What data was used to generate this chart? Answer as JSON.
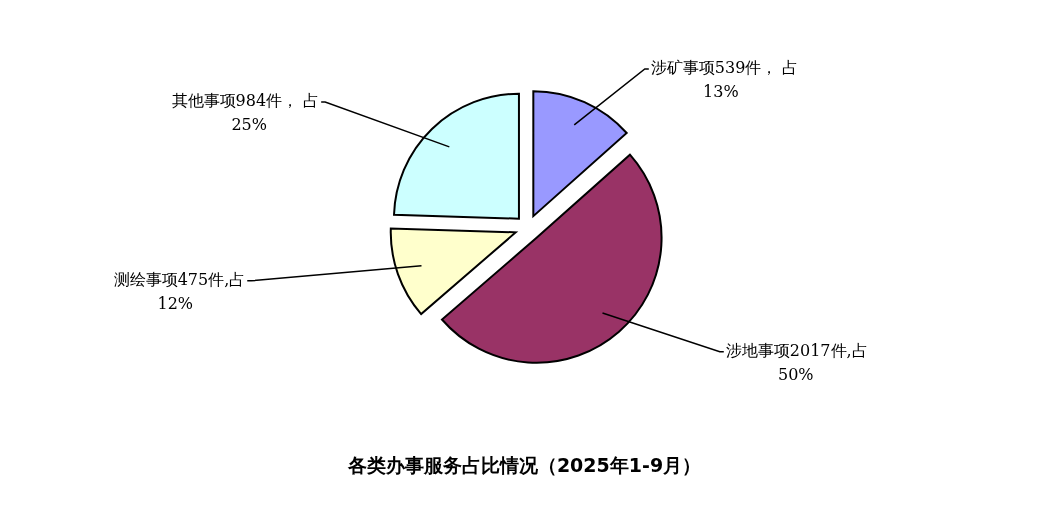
{
  "chart_data": {
    "type": "pie",
    "title": "各类办事服务占比情况（2025年1-9月）",
    "categories": [
      "涉矿事项",
      "涉地事项",
      "测绘事项",
      "其他事项"
    ],
    "values": [
      539,
      2017,
      475,
      984
    ],
    "colors": [
      "#9999ff",
      "#993366",
      "#ffffcc",
      "#ccffff"
    ],
    "value_labels": [
      "539件， 占\n13%",
      "2017件,占\n50%",
      "475件,占\n12%",
      "984件， 占\n25%"
    ]
  }
}
